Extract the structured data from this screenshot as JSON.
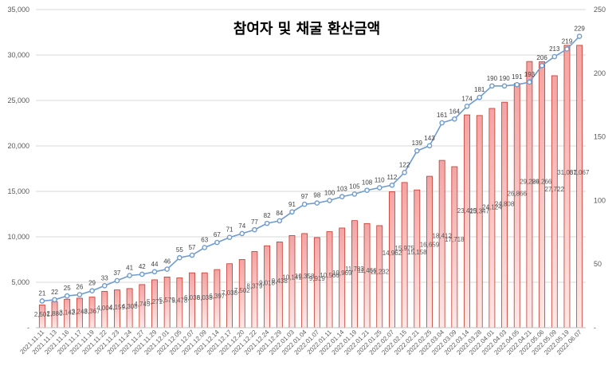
{
  "chart_data": {
    "type": "bar+line",
    "title": "참여자 및 채굴 환산금액",
    "categories": [
      "2021.11.11",
      "2021.11.13",
      "2021.11.16",
      "2021.11.17",
      "2021.11.19",
      "2021.11.22",
      "2021.11.23",
      "2021.11.24",
      "2021.11.27",
      "2021.11.29",
      "2021.12.01",
      "2021.12.05",
      "2021.12.07",
      "2021.12.09",
      "2021.12.14",
      "2021.12.17",
      "2021.12.20",
      "2021.12.22",
      "2021.12.24",
      "2021.12.29",
      "2022.01.03",
      "2022.01.04",
      "2022.01.07",
      "2022.01.11",
      "2022.01.14",
      "2022.01.19",
      "2022.01.21",
      "2022.01.25",
      "2022.02.07",
      "2022.02.15",
      "2022.02.21",
      "2022.02.25",
      "2022.03.04",
      "2022.03.09",
      "2022.03.14",
      "2022.03.28",
      "2022.04.01",
      "2022.04.03",
      "2022.04.05",
      "2022.04.21",
      "2022.05.06",
      "2022.05.09",
      "2022.05.19",
      "2022.06.07"
    ],
    "series": [
      {
        "type": "bar",
        "axis": "left",
        "values": [
          2501,
          2880,
          3142,
          3248,
          3367,
          4004,
          4159,
          4308,
          4745,
          5271,
          5579,
          5478,
          6038,
          6038,
          6397,
          7038,
          7502,
          8379,
          9018,
          9438,
          10141,
          10358,
          9919,
          10566,
          10969,
          11783,
          11466,
          11232,
          14962,
          15975,
          15158,
          16659,
          18412,
          17718,
          23415,
          23347,
          24124,
          24808,
          26866,
          29286,
          29266,
          27722,
          31067,
          31067
        ]
      },
      {
        "type": "line",
        "axis": "right",
        "values": [
          21,
          22,
          25,
          26,
          29,
          33,
          37,
          41,
          42,
          44,
          46,
          55,
          57,
          63,
          67,
          71,
          74,
          77,
          82,
          84,
          91,
          97,
          98,
          100,
          103,
          105,
          108,
          110,
          112,
          122,
          139,
          143,
          161,
          164,
          174,
          181,
          190,
          190,
          191,
          193,
          206,
          213,
          219,
          229
        ]
      }
    ],
    "bar_labels": [
      "2,501",
      "2,880",
      "3,142",
      "3,248",
      "3,367",
      "4,004",
      "4,159",
      "4,308",
      "4,745",
      "5,271",
      "5,579",
      "5,478",
      "6,038",
      "6,038",
      "6,397",
      "7,038",
      "7,502",
      "8,379",
      "9,018",
      "9,438",
      "10,141",
      "10,358",
      "9,919",
      "10,566",
      "10,969",
      "11,783",
      "11,466",
      "11,232",
      "14,962",
      "15,975",
      "15,158",
      "16,659",
      "18,412",
      "17,718",
      "23,415",
      "23,347",
      "24,124",
      "24,808",
      "26,866",
      "29,286",
      "29,266",
      "27,722",
      "31,067",
      "31,067"
    ],
    "line_labels": [
      "21",
      "22",
      "25",
      "26",
      "29",
      "33",
      "37",
      "41",
      "42",
      "44",
      "46",
      "55",
      "57",
      "63",
      "67",
      "71",
      "74",
      "77",
      "82",
      "84",
      "91",
      "97",
      "98",
      "100",
      "103",
      "105",
      "108",
      "110",
      "112",
      "122",
      "139",
      "143",
      "161",
      "164",
      "174",
      "181",
      "190",
      "190",
      "191",
      "193",
      "206",
      "213",
      "219",
      "229"
    ],
    "ylim_left": [
      0,
      35000
    ],
    "yticks_left": [
      "-",
      "5,000",
      "10,000",
      "15,000",
      "20,000",
      "25,000",
      "30,000",
      "35,000"
    ],
    "ylim_right": [
      0,
      250
    ],
    "yticks_right": [
      "-",
      "50",
      "100",
      "150",
      "200",
      "250"
    ],
    "grid": "horizontal",
    "colors": {
      "bar_fill_top": "#f4a3a3",
      "bar_fill_bottom": "#fde8e8",
      "bar_stroke": "#c0392b",
      "line": "#6f9bd1",
      "marker": "#6f9bd1",
      "grid": "#d9d9d9"
    }
  }
}
